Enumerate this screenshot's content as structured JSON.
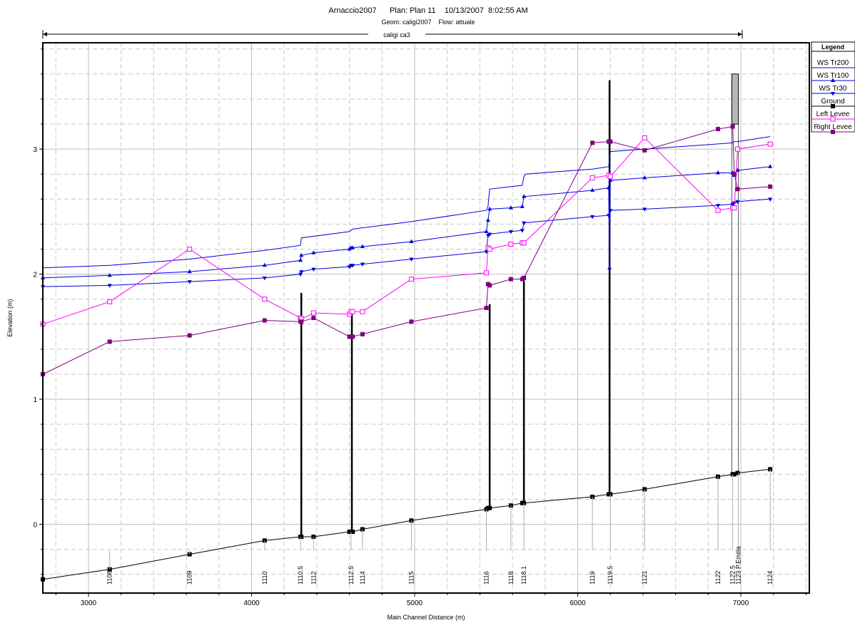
{
  "chart_data": {
    "type": "line",
    "title": "Arnaccio2007      Plan: Plan 11    10/13/2007  8:02:55 AM",
    "subtitle": "Geom: caligi2007    Flow: attuale",
    "reach_label": "caligi ca3",
    "xlabel": "Main Channel Distance (m)",
    "ylabel": "Elevation (m)",
    "xlim": [
      2720,
      7420
    ],
    "ylim": [
      -0.55,
      3.85
    ],
    "xticks": [
      3000,
      4000,
      5000,
      6000,
      7000
    ],
    "yticks": [
      0,
      1,
      2,
      3
    ],
    "grid": true,
    "legend_title": "Legend",
    "legend_position": "outside-right",
    "series": [
      {
        "name": "WS  Tr200",
        "color": "#0000e0",
        "marker": "none",
        "x": [
          2720,
          3130,
          3620,
          4080,
          4300,
          4305,
          4600,
          4610,
          4620,
          4980,
          5440,
          5450,
          5460,
          5660,
          5670,
          5680,
          6090,
          6190,
          6200,
          6950,
          6960,
          6980,
          7180
        ],
        "y": [
          2.05,
          2.07,
          2.12,
          2.19,
          2.23,
          2.29,
          2.34,
          2.35,
          2.36,
          2.42,
          2.51,
          2.54,
          2.68,
          2.71,
          2.78,
          2.8,
          2.84,
          2.86,
          2.98,
          3.05,
          3.06,
          3.06,
          3.1
        ]
      },
      {
        "name": "WS  Tr100",
        "color": "#0000e0",
        "marker": "triangle-up",
        "x": [
          2720,
          3130,
          3620,
          4080,
          4300,
          4305,
          4380,
          4600,
          4610,
          4620,
          4680,
          4980,
          5440,
          5450,
          5460,
          5590,
          5660,
          5670,
          6090,
          6190,
          6195,
          6200,
          6410,
          6860,
          6950,
          6960,
          6980,
          7180
        ],
        "y": [
          1.97,
          1.99,
          2.02,
          2.07,
          2.11,
          2.15,
          2.17,
          2.2,
          2.21,
          2.21,
          2.22,
          2.26,
          2.34,
          2.43,
          2.52,
          2.53,
          2.54,
          2.62,
          2.67,
          2.69,
          2.05,
          2.75,
          2.77,
          2.81,
          2.81,
          2.79,
          2.83,
          2.86
        ]
      },
      {
        "name": "WS  Tr30",
        "color": "#0000e0",
        "marker": "triangle-down",
        "x": [
          2720,
          3130,
          3620,
          4080,
          4300,
          4305,
          4380,
          4600,
          4610,
          4620,
          4680,
          4980,
          5440,
          5450,
          5460,
          5590,
          5660,
          5670,
          6090,
          6190,
          6200,
          6410,
          6860,
          6950,
          6960,
          6980,
          7180
        ],
        "y": [
          1.9,
          1.91,
          1.94,
          1.97,
          2.0,
          2.02,
          2.04,
          2.06,
          2.07,
          2.07,
          2.08,
          2.12,
          2.18,
          2.31,
          2.32,
          2.34,
          2.35,
          2.41,
          2.46,
          2.47,
          2.51,
          2.52,
          2.55,
          2.56,
          2.57,
          2.58,
          2.6
        ]
      },
      {
        "name": "Ground",
        "color": "#000000",
        "marker": "square",
        "x": [
          2720,
          3130,
          3620,
          4080,
          4300,
          4305,
          4380,
          4600,
          4610,
          4620,
          4680,
          4980,
          5440,
          5450,
          5460,
          5590,
          5660,
          5670,
          6090,
          6190,
          6200,
          6410,
          6860,
          6950,
          6960,
          6980,
          7180
        ],
        "y": [
          -0.44,
          -0.36,
          -0.24,
          -0.13,
          -0.1,
          -0.1,
          -0.1,
          -0.06,
          -0.06,
          -0.06,
          -0.04,
          0.03,
          0.12,
          0.13,
          0.13,
          0.15,
          0.17,
          0.17,
          0.22,
          0.24,
          0.24,
          0.28,
          0.38,
          0.4,
          0.4,
          0.41,
          0.44
        ]
      },
      {
        "name": "Left Levee",
        "color": "#ff00ff",
        "marker": "open-square",
        "x": [
          2720,
          3130,
          3620,
          4080,
          4300,
          4305,
          4380,
          4600,
          4610,
          4620,
          4680,
          4980,
          5440,
          5450,
          5460,
          5590,
          5660,
          5670,
          6090,
          6190,
          6200,
          6410,
          6860,
          6950,
          6960,
          6980,
          7180
        ],
        "y": [
          1.6,
          1.78,
          2.2,
          1.8,
          1.65,
          1.64,
          1.69,
          1.68,
          1.7,
          1.7,
          1.7,
          1.96,
          2.01,
          2.21,
          2.2,
          2.24,
          2.25,
          2.25,
          2.77,
          2.79,
          2.78,
          3.09,
          2.51,
          2.53,
          2.53,
          3.0,
          3.04
        ]
      },
      {
        "name": "Right Levee",
        "color": "#800080",
        "marker": "square",
        "x": [
          2720,
          3130,
          3620,
          4080,
          4300,
          4305,
          4380,
          4600,
          4610,
          4620,
          4680,
          4980,
          5440,
          5450,
          5460,
          5590,
          5660,
          5670,
          6090,
          6190,
          6200,
          6410,
          6860,
          6950,
          6960,
          6980,
          7180
        ],
        "y": [
          1.2,
          1.46,
          1.51,
          1.63,
          1.62,
          1.62,
          1.65,
          1.5,
          1.5,
          1.5,
          1.52,
          1.62,
          1.73,
          1.92,
          1.91,
          1.96,
          1.96,
          1.97,
          3.05,
          3.06,
          3.06,
          2.99,
          3.16,
          3.18,
          2.8,
          2.68,
          2.7
        ]
      }
    ],
    "structures": [
      {
        "x": 4305,
        "bottom": -0.1,
        "top": 1.85
      },
      {
        "x": 4615,
        "bottom": -0.06,
        "top": 1.68
      },
      {
        "x": 5460,
        "bottom": 0.13,
        "top": 1.76
      },
      {
        "x": 5670,
        "bottom": 0.17,
        "top": 1.97
      },
      {
        "x": 6195,
        "bottom": 0.24,
        "top": 3.55
      }
    ],
    "bridge_deck": {
      "x1": 6945,
      "x2": 6985,
      "low": 3.2,
      "high": 3.6
    },
    "bridge_piers": {
      "x1": 6945,
      "x2": 6985,
      "bottom": 0.4
    },
    "cross_sections": [
      {
        "label": "1108",
        "x": 3130
      },
      {
        "label": "1109",
        "x": 3620
      },
      {
        "label": "1110",
        "x": 4080
      },
      {
        "label": "1110.5",
        "x": 4300
      },
      {
        "label": "1112",
        "x": 4380
      },
      {
        "label": "1112.5",
        "x": 4610
      },
      {
        "label": "1114",
        "x": 4680
      },
      {
        "label": "1115",
        "x": 4980
      },
      {
        "label": "1116",
        "x": 5440
      },
      {
        "label": "1118",
        "x": 5590
      },
      {
        "label": "1118.1",
        "x": 5670
      },
      {
        "label": "1119",
        "x": 6090
      },
      {
        "label": "1119.5",
        "x": 6200
      },
      {
        "label": "1121",
        "x": 6410
      },
      {
        "label": "1122",
        "x": 6860
      },
      {
        "label": "1122.5",
        "x": 6950
      },
      {
        "label": "1123 P.Emilia",
        "x": 6985
      },
      {
        "label": "1124",
        "x": 7180
      }
    ]
  }
}
